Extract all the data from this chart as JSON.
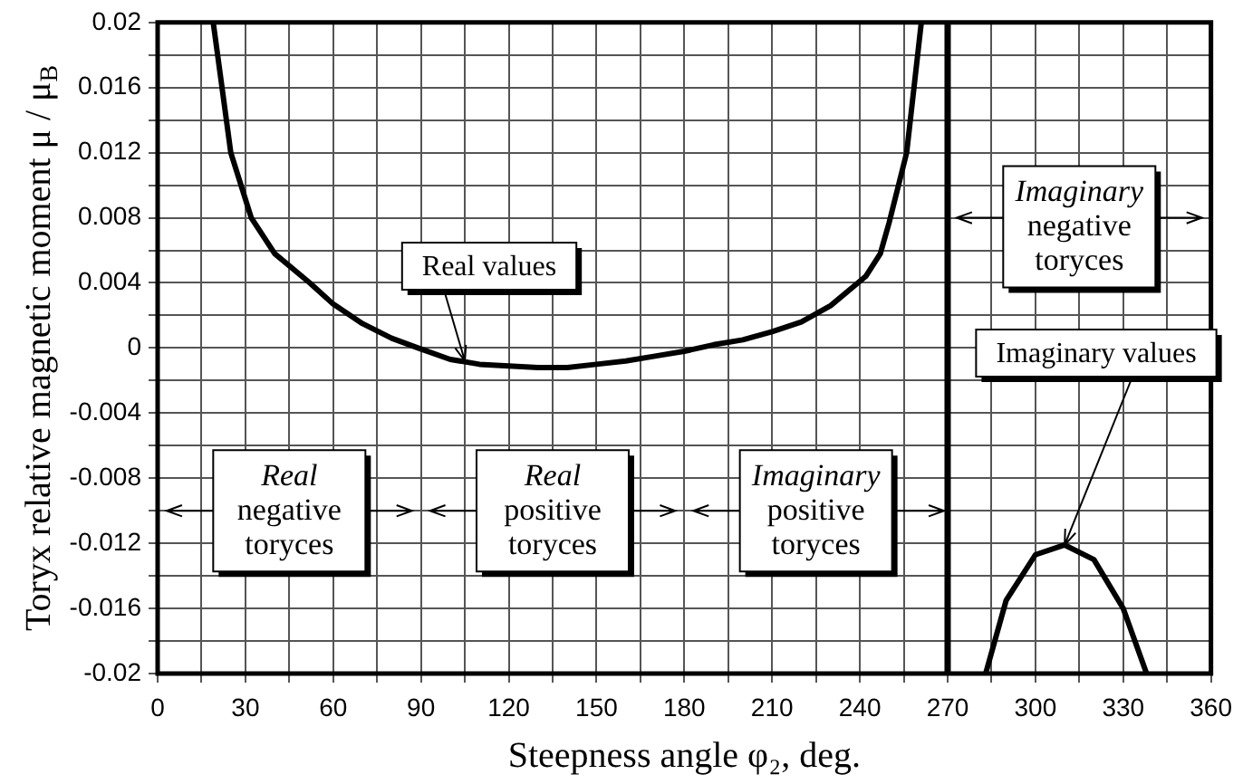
{
  "chart_data": {
    "type": "line",
    "xlabel": "Steepness angle φ₂, deg.",
    "ylabel": "Toryx relative magnetic moment μ / μ$_{B}$",
    "xlim": [
      0,
      360
    ],
    "ylim": [
      -0.02,
      0.02
    ],
    "xticks": [
      0,
      {
        "value": 15,
        "label": null
      },
      30,
      {
        "value": 45,
        "label": null
      },
      60,
      {
        "value": 75,
        "label": null
      },
      90,
      {
        "value": 105,
        "label": null
      },
      120,
      {
        "value": 135,
        "label": null
      },
      150,
      {
        "value": 165,
        "label": null
      },
      180,
      {
        "value": 195,
        "label": null
      },
      210,
      {
        "value": 225,
        "label": null
      },
      240,
      {
        "value": 255,
        "label": null
      },
      270,
      {
        "value": 285,
        "label": null
      },
      300,
      {
        "value": 315,
        "label": null
      },
      330,
      {
        "value": 345,
        "label": null
      },
      360
    ],
    "yticks": [
      -0.02,
      {
        "value": -0.018,
        "label": null
      },
      -0.016,
      {
        "value": -0.014,
        "label": null
      },
      -0.012,
      {
        "value": -0.01,
        "label": null
      },
      -0.008,
      {
        "value": -0.006,
        "label": null
      },
      -0.004,
      {
        "value": -0.002,
        "label": null
      },
      0,
      {
        "value": 0.002,
        "label": null
      },
      0.004,
      {
        "value": 0.006,
        "label": null
      },
      0.008,
      {
        "value": 0.01,
        "label": null
      },
      0.012,
      {
        "value": 0.014,
        "label": null
      },
      0.016,
      {
        "value": 0.018,
        "label": null
      },
      0.02
    ],
    "grid": true,
    "legend": false,
    "marker": "none",
    "line_style": "solid",
    "series": [
      {
        "color": "#000000",
        "x": [
          19,
          22,
          25,
          32,
          40,
          52,
          60,
          70,
          80,
          89,
          100,
          110,
          120,
          130,
          140,
          150,
          160,
          170,
          180,
          190,
          200,
          210,
          220,
          230,
          242,
          247,
          250,
          256,
          261
        ],
        "values": [
          0.02,
          0.016,
          0.012,
          0.008,
          0.0058,
          0.004,
          0.0027,
          0.0015,
          0.0006,
          0,
          -0.0007,
          -0.001,
          -0.0011,
          -0.0012,
          -0.0012,
          -0.001,
          -0.0008,
          -0.0005,
          -0.0002,
          0.0002,
          0.0005,
          0.001,
          0.0016,
          0.0026,
          0.0044,
          0.0058,
          0.0077,
          0.012,
          0.02
        ]
      },
      {
        "color": "#000000",
        "x": [
          283,
          290,
          300,
          310,
          320,
          330,
          338
        ],
        "values": [
          -0.02,
          -0.0155,
          -0.0127,
          -0.0121,
          -0.013,
          -0.016,
          -0.02
        ]
      }
    ],
    "ref_lines": [
      {
        "axis": "x",
        "value": 270,
        "color": "#000000"
      }
    ],
    "annotations": [
      "Real\nnegative\ntoryces",
      "Real\npositive\ntoryces",
      {
        "text": "Imaginary\npositive\ntoryces",
        "x": 270,
        "y": -0.01
      },
      "Imaginary\nnegative\ntoryces",
      {
        "text": "Real values",
        "x": 105,
        "y": -0.0008
      },
      {
        "text": "Imaginary values",
        "x": 310,
        "y": -0.0121
      }
    ]
  }
}
